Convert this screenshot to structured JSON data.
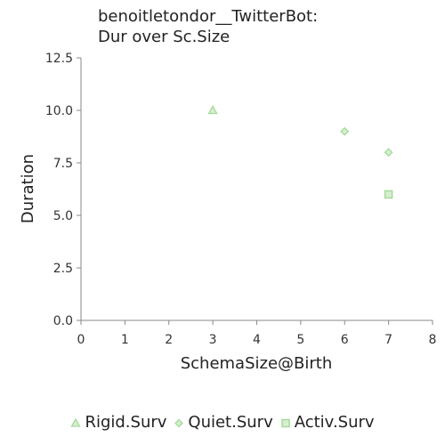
{
  "chart_data": {
    "type": "scatter",
    "title_line1": "benoitletondor__TwitterBot:",
    "title_line2": "Dur over Sc.Size",
    "xlabel": "SchemaSize@Birth",
    "ylabel": "Duration",
    "xlim": [
      0,
      8
    ],
    "ylim": [
      0,
      12.5
    ],
    "xticks": [
      "0",
      "1",
      "2",
      "3",
      "4",
      "5",
      "6",
      "7",
      "8"
    ],
    "yticks": [
      "0.0",
      "2.5",
      "5.0",
      "7.5",
      "10.0",
      "12.5"
    ],
    "grid": false,
    "legend_position": "bottom",
    "series": [
      {
        "name": "Rigid.Surv",
        "marker": "triangle",
        "points": [
          {
            "x": 3,
            "y": 10
          }
        ]
      },
      {
        "name": "Quiet.Surv",
        "marker": "diamond",
        "points": [
          {
            "x": 6,
            "y": 9
          },
          {
            "x": 7,
            "y": 8
          }
        ]
      },
      {
        "name": "Activ.Surv",
        "marker": "square",
        "points": [
          {
            "x": 7,
            "y": 6
          }
        ]
      }
    ],
    "marker_stroke": "#a6d99a",
    "marker_fill": "#d6f0cf"
  }
}
